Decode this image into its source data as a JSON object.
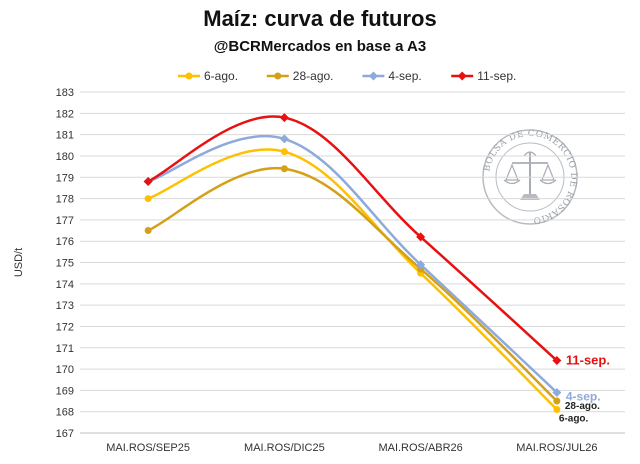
{
  "title": "Maíz: curva de futuros",
  "subtitle": "@BCRMercados en base a A3",
  "seal_text": "BOLSA DE COMERCIO DE ROSARIO",
  "chart_data": {
    "type": "line",
    "categories": [
      "MAI.ROS/SEP25",
      "MAI.ROS/DIC25",
      "MAI.ROS/ABR26",
      "MAI.ROS/JUL26"
    ],
    "ylabel": "USD/t",
    "xlabel": "",
    "ylim": [
      167,
      183
    ],
    "ytick_step": 1,
    "grid": true,
    "legend": "top",
    "smooth": true,
    "series": [
      {
        "name": "6-ago.",
        "color": "#FFC000",
        "marker": "circle",
        "values": [
          178.0,
          180.2,
          174.5,
          168.1
        ],
        "end_label": "6-ago."
      },
      {
        "name": "28-ago.",
        "color": "#D4A017",
        "marker": "circle",
        "values": [
          176.5,
          179.4,
          174.7,
          168.5
        ],
        "end_label": "28-ago."
      },
      {
        "name": "4-sep.",
        "color": "#8EA9DB",
        "marker": "diamond",
        "values": [
          178.8,
          180.8,
          174.9,
          168.9
        ],
        "end_label": "4-sep."
      },
      {
        "name": "11-sep.",
        "color": "#E81010",
        "marker": "diamond",
        "values": [
          178.8,
          181.8,
          176.2,
          170.4
        ],
        "end_label": "11-sep."
      }
    ]
  }
}
